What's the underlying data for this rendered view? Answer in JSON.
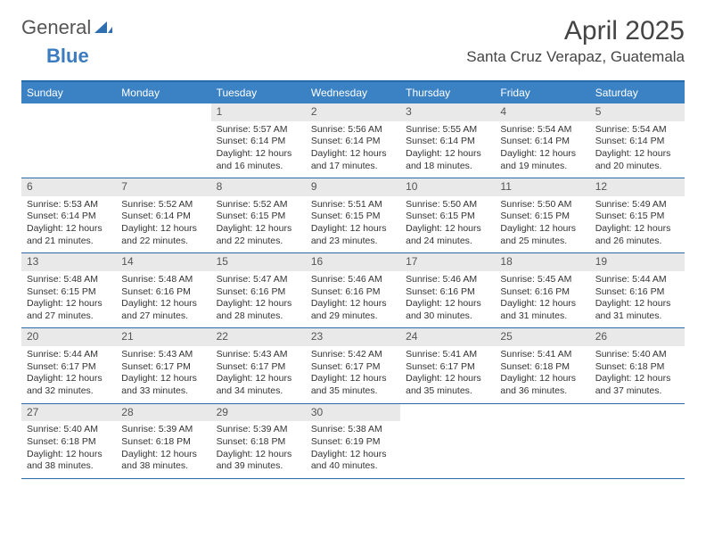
{
  "brand": {
    "general": "General",
    "blue": "Blue"
  },
  "header": {
    "month_title": "April 2025",
    "location": "Santa Cruz Verapaz, Guatemala"
  },
  "calendar": {
    "type": "table",
    "columns": [
      "Sunday",
      "Monday",
      "Tuesday",
      "Wednesday",
      "Thursday",
      "Friday",
      "Saturday"
    ],
    "header_bg": "#3b82c4",
    "header_text_color": "#ffffff",
    "border_color": "#2b6aa8",
    "daynum_bg": "#e9e9e9",
    "body_fontsize": 10.5,
    "header_fontsize": 12,
    "weeks": [
      [
        null,
        null,
        {
          "n": "1",
          "sr": "Sunrise: 5:57 AM",
          "ss": "Sunset: 6:14 PM",
          "dl1": "Daylight: 12 hours",
          "dl2": "and 16 minutes."
        },
        {
          "n": "2",
          "sr": "Sunrise: 5:56 AM",
          "ss": "Sunset: 6:14 PM",
          "dl1": "Daylight: 12 hours",
          "dl2": "and 17 minutes."
        },
        {
          "n": "3",
          "sr": "Sunrise: 5:55 AM",
          "ss": "Sunset: 6:14 PM",
          "dl1": "Daylight: 12 hours",
          "dl2": "and 18 minutes."
        },
        {
          "n": "4",
          "sr": "Sunrise: 5:54 AM",
          "ss": "Sunset: 6:14 PM",
          "dl1": "Daylight: 12 hours",
          "dl2": "and 19 minutes."
        },
        {
          "n": "5",
          "sr": "Sunrise: 5:54 AM",
          "ss": "Sunset: 6:14 PM",
          "dl1": "Daylight: 12 hours",
          "dl2": "and 20 minutes."
        }
      ],
      [
        {
          "n": "6",
          "sr": "Sunrise: 5:53 AM",
          "ss": "Sunset: 6:14 PM",
          "dl1": "Daylight: 12 hours",
          "dl2": "and 21 minutes."
        },
        {
          "n": "7",
          "sr": "Sunrise: 5:52 AM",
          "ss": "Sunset: 6:14 PM",
          "dl1": "Daylight: 12 hours",
          "dl2": "and 22 minutes."
        },
        {
          "n": "8",
          "sr": "Sunrise: 5:52 AM",
          "ss": "Sunset: 6:15 PM",
          "dl1": "Daylight: 12 hours",
          "dl2": "and 22 minutes."
        },
        {
          "n": "9",
          "sr": "Sunrise: 5:51 AM",
          "ss": "Sunset: 6:15 PM",
          "dl1": "Daylight: 12 hours",
          "dl2": "and 23 minutes."
        },
        {
          "n": "10",
          "sr": "Sunrise: 5:50 AM",
          "ss": "Sunset: 6:15 PM",
          "dl1": "Daylight: 12 hours",
          "dl2": "and 24 minutes."
        },
        {
          "n": "11",
          "sr": "Sunrise: 5:50 AM",
          "ss": "Sunset: 6:15 PM",
          "dl1": "Daylight: 12 hours",
          "dl2": "and 25 minutes."
        },
        {
          "n": "12",
          "sr": "Sunrise: 5:49 AM",
          "ss": "Sunset: 6:15 PM",
          "dl1": "Daylight: 12 hours",
          "dl2": "and 26 minutes."
        }
      ],
      [
        {
          "n": "13",
          "sr": "Sunrise: 5:48 AM",
          "ss": "Sunset: 6:15 PM",
          "dl1": "Daylight: 12 hours",
          "dl2": "and 27 minutes."
        },
        {
          "n": "14",
          "sr": "Sunrise: 5:48 AM",
          "ss": "Sunset: 6:16 PM",
          "dl1": "Daylight: 12 hours",
          "dl2": "and 27 minutes."
        },
        {
          "n": "15",
          "sr": "Sunrise: 5:47 AM",
          "ss": "Sunset: 6:16 PM",
          "dl1": "Daylight: 12 hours",
          "dl2": "and 28 minutes."
        },
        {
          "n": "16",
          "sr": "Sunrise: 5:46 AM",
          "ss": "Sunset: 6:16 PM",
          "dl1": "Daylight: 12 hours",
          "dl2": "and 29 minutes."
        },
        {
          "n": "17",
          "sr": "Sunrise: 5:46 AM",
          "ss": "Sunset: 6:16 PM",
          "dl1": "Daylight: 12 hours",
          "dl2": "and 30 minutes."
        },
        {
          "n": "18",
          "sr": "Sunrise: 5:45 AM",
          "ss": "Sunset: 6:16 PM",
          "dl1": "Daylight: 12 hours",
          "dl2": "and 31 minutes."
        },
        {
          "n": "19",
          "sr": "Sunrise: 5:44 AM",
          "ss": "Sunset: 6:16 PM",
          "dl1": "Daylight: 12 hours",
          "dl2": "and 31 minutes."
        }
      ],
      [
        {
          "n": "20",
          "sr": "Sunrise: 5:44 AM",
          "ss": "Sunset: 6:17 PM",
          "dl1": "Daylight: 12 hours",
          "dl2": "and 32 minutes."
        },
        {
          "n": "21",
          "sr": "Sunrise: 5:43 AM",
          "ss": "Sunset: 6:17 PM",
          "dl1": "Daylight: 12 hours",
          "dl2": "and 33 minutes."
        },
        {
          "n": "22",
          "sr": "Sunrise: 5:43 AM",
          "ss": "Sunset: 6:17 PM",
          "dl1": "Daylight: 12 hours",
          "dl2": "and 34 minutes."
        },
        {
          "n": "23",
          "sr": "Sunrise: 5:42 AM",
          "ss": "Sunset: 6:17 PM",
          "dl1": "Daylight: 12 hours",
          "dl2": "and 35 minutes."
        },
        {
          "n": "24",
          "sr": "Sunrise: 5:41 AM",
          "ss": "Sunset: 6:17 PM",
          "dl1": "Daylight: 12 hours",
          "dl2": "and 35 minutes."
        },
        {
          "n": "25",
          "sr": "Sunrise: 5:41 AM",
          "ss": "Sunset: 6:18 PM",
          "dl1": "Daylight: 12 hours",
          "dl2": "and 36 minutes."
        },
        {
          "n": "26",
          "sr": "Sunrise: 5:40 AM",
          "ss": "Sunset: 6:18 PM",
          "dl1": "Daylight: 12 hours",
          "dl2": "and 37 minutes."
        }
      ],
      [
        {
          "n": "27",
          "sr": "Sunrise: 5:40 AM",
          "ss": "Sunset: 6:18 PM",
          "dl1": "Daylight: 12 hours",
          "dl2": "and 38 minutes."
        },
        {
          "n": "28",
          "sr": "Sunrise: 5:39 AM",
          "ss": "Sunset: 6:18 PM",
          "dl1": "Daylight: 12 hours",
          "dl2": "and 38 minutes."
        },
        {
          "n": "29",
          "sr": "Sunrise: 5:39 AM",
          "ss": "Sunset: 6:18 PM",
          "dl1": "Daylight: 12 hours",
          "dl2": "and 39 minutes."
        },
        {
          "n": "30",
          "sr": "Sunrise: 5:38 AM",
          "ss": "Sunset: 6:19 PM",
          "dl1": "Daylight: 12 hours",
          "dl2": "and 40 minutes."
        },
        null,
        null,
        null
      ]
    ]
  }
}
